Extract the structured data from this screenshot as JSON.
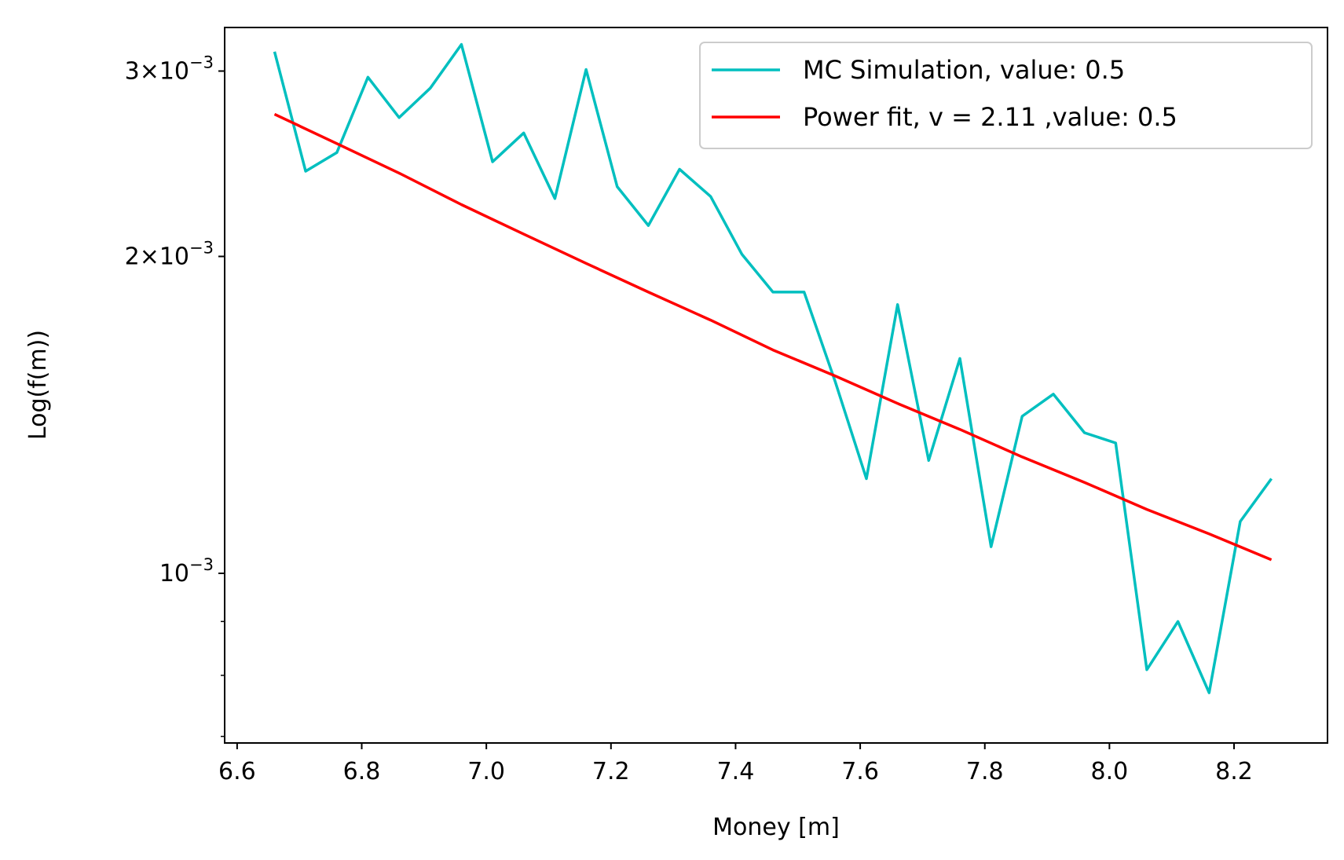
{
  "chart_data": {
    "type": "line",
    "xlabel": "Money [m]",
    "ylabel": "Log(f(m))",
    "xlim": [
      6.58,
      8.35
    ],
    "ylim": [
      0.00069,
      0.0033
    ],
    "y_scale": "log",
    "grid": false,
    "legend_position": "top-right",
    "x_ticks": [
      6.6,
      6.8,
      7.0,
      7.2,
      7.4,
      7.6,
      7.8,
      8.0,
      8.2
    ],
    "x_tick_labels": [
      "6.6",
      "6.8",
      "7.0",
      "7.2",
      "7.4",
      "7.6",
      "7.8",
      "8.0",
      "8.2"
    ],
    "y_major_ticks": [
      {
        "value": 0.001,
        "base": "10",
        "exp": "−3"
      },
      {
        "value": 0.002,
        "base": "2×10",
        "exp": "−3"
      },
      {
        "value": 0.003,
        "base": "3×10",
        "exp": "−3"
      }
    ],
    "y_minor_ticks": [
      0.0007,
      0.0008,
      0.0009
    ],
    "series": [
      {
        "name": "MC Simulation, value: 0.5",
        "color": "#00bfbf",
        "x": [
          6.66,
          6.71,
          6.76,
          6.81,
          6.86,
          6.91,
          6.96,
          7.01,
          7.06,
          7.11,
          7.16,
          7.21,
          7.26,
          7.31,
          7.36,
          7.41,
          7.46,
          7.51,
          7.56,
          7.61,
          7.66,
          7.71,
          7.76,
          7.81,
          7.86,
          7.91,
          7.96,
          8.01,
          8.06,
          8.11,
          8.16,
          8.21,
          8.26
        ],
        "y": [
          0.00313,
          0.00241,
          0.00251,
          0.00296,
          0.00271,
          0.00289,
          0.00318,
          0.00246,
          0.00262,
          0.00227,
          0.00301,
          0.00233,
          0.00214,
          0.00242,
          0.00228,
          0.00201,
          0.00185,
          0.00185,
          0.00152,
          0.00123,
          0.0018,
          0.00128,
          0.0016,
          0.00106,
          0.00141,
          0.00148,
          0.00136,
          0.00133,
          0.00081,
          0.0009,
          0.00077,
          0.00112,
          0.00123
        ]
      },
      {
        "name": "Power fit, v = 2.11 ,value: 0.5",
        "color": "#ff0000",
        "x": [
          6.66,
          6.76,
          6.86,
          6.96,
          7.06,
          7.16,
          7.26,
          7.36,
          7.46,
          7.56,
          7.66,
          7.76,
          7.86,
          7.96,
          8.06,
          8.16,
          8.26
        ],
        "y": [
          0.00273,
          0.00256,
          0.0024,
          0.00224,
          0.0021,
          0.00197,
          0.00185,
          0.00174,
          0.00163,
          0.00154,
          0.00145,
          0.00137,
          0.00129,
          0.00122,
          0.00115,
          0.00109,
          0.00103
        ]
      }
    ]
  }
}
